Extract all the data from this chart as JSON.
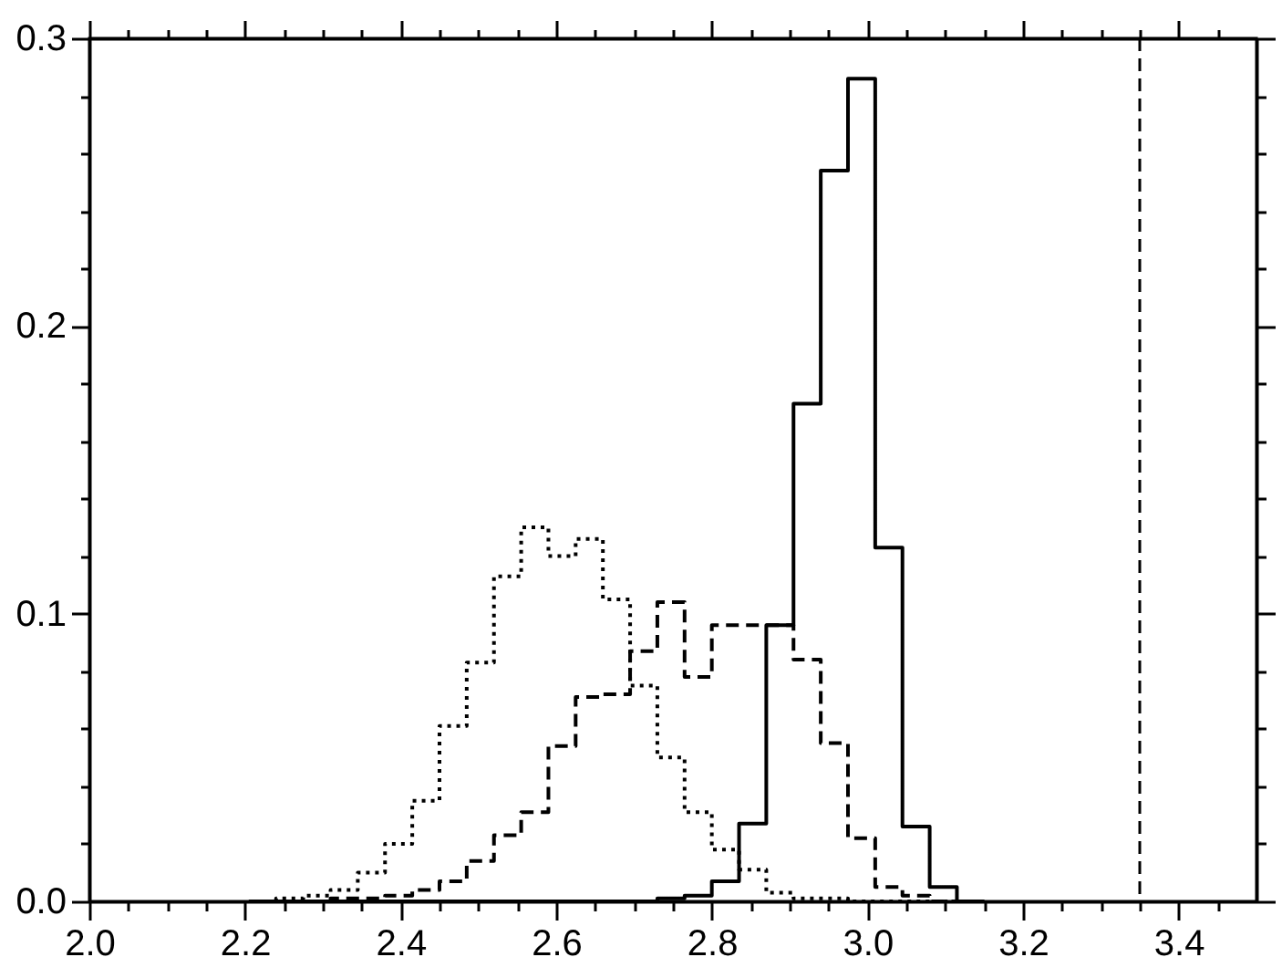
{
  "chart_data": {
    "type": "histogram",
    "bins": [
      2.205,
      2.24,
      2.275,
      2.31,
      2.345,
      2.38,
      2.415,
      2.45,
      2.485,
      2.52,
      2.555,
      2.59,
      2.625,
      2.66,
      2.695,
      2.73,
      2.765,
      2.8,
      2.835,
      2.87,
      2.905,
      2.94,
      2.975,
      3.01,
      3.045,
      3.08,
      3.115,
      3.15
    ],
    "series": [
      {
        "color": "#000000",
        "line_style": "solid",
        "values": [
          0,
          0,
          0,
          0,
          0,
          0,
          0,
          0,
          0,
          0,
          0,
          0,
          0,
          0,
          0,
          0.001,
          0.002,
          0.007,
          0.027,
          0.096,
          0.173,
          0.254,
          0.286,
          0.123,
          0.026,
          0.005,
          0
        ]
      },
      {
        "color": "#000000",
        "line_style": "dashed",
        "values": [
          0,
          0,
          0,
          0.001,
          0.001,
          0.002,
          0.004,
          0.007,
          0.014,
          0.023,
          0.031,
          0.054,
          0.071,
          0.072,
          0.087,
          0.104,
          0.078,
          0.096,
          0.096,
          0.096,
          0.084,
          0.055,
          0.022,
          0.005,
          0.002,
          0,
          0
        ]
      },
      {
        "color": "#000000",
        "line_style": "dotted",
        "values": [
          0,
          0.001,
          0.002,
          0.004,
          0.01,
          0.02,
          0.035,
          0.061,
          0.083,
          0.113,
          0.13,
          0.12,
          0.126,
          0.105,
          0.075,
          0.05,
          0.031,
          0.018,
          0.011,
          0.003,
          0.001,
          0.001,
          0,
          0,
          0,
          0,
          0
        ]
      }
    ],
    "xlim": [
      2.0,
      3.5
    ],
    "ylim": [
      0,
      0.3
    ],
    "xticks": [
      {
        "value": 2.0,
        "label": "2.0"
      },
      {
        "value": 2.05,
        "label": null
      },
      {
        "value": 2.1,
        "label": null
      },
      {
        "value": 2.15,
        "label": null
      },
      {
        "value": 2.2,
        "label": "2.2"
      },
      {
        "value": 2.25,
        "label": null
      },
      {
        "value": 2.3,
        "label": null
      },
      {
        "value": 2.35,
        "label": null
      },
      {
        "value": 2.4,
        "label": "2.4"
      },
      {
        "value": 2.45,
        "label": null
      },
      {
        "value": 2.5,
        "label": null
      },
      {
        "value": 2.55,
        "label": null
      },
      {
        "value": 2.6,
        "label": "2.6"
      },
      {
        "value": 2.65,
        "label": null
      },
      {
        "value": 2.7,
        "label": null
      },
      {
        "value": 2.75,
        "label": null
      },
      {
        "value": 2.8,
        "label": "2.8"
      },
      {
        "value": 2.85,
        "label": null
      },
      {
        "value": 2.9,
        "label": null
      },
      {
        "value": 2.95,
        "label": null
      },
      {
        "value": 3.0,
        "label": "3.0"
      },
      {
        "value": 3.05,
        "label": null
      },
      {
        "value": 3.1,
        "label": null
      },
      {
        "value": 3.15,
        "label": null
      },
      {
        "value": 3.2,
        "label": "3.2"
      },
      {
        "value": 3.25,
        "label": null
      },
      {
        "value": 3.3,
        "label": null
      },
      {
        "value": 3.35,
        "label": null
      },
      {
        "value": 3.4,
        "label": "3.4"
      },
      {
        "value": 3.45,
        "label": null
      }
    ],
    "yticks": [
      {
        "value": 0,
        "label": "0.0"
      },
      {
        "value": 0.02,
        "label": null
      },
      {
        "value": 0.04,
        "label": null
      },
      {
        "value": 0.06,
        "label": null
      },
      {
        "value": 0.08,
        "label": null
      },
      {
        "value": 0.1,
        "label": "0.1"
      },
      {
        "value": 0.12,
        "label": null
      },
      {
        "value": 0.14,
        "label": null
      },
      {
        "value": 0.16,
        "label": null
      },
      {
        "value": 0.18,
        "label": null
      },
      {
        "value": 0.2,
        "label": "0.2"
      },
      {
        "value": 0.22,
        "label": null
      },
      {
        "value": 0.24,
        "label": null
      },
      {
        "value": 0.26,
        "label": null
      },
      {
        "value": 0.28,
        "label": null
      },
      {
        "value": 0.3,
        "label": "0.3"
      }
    ],
    "ref_lines": [
      {
        "axis": "x",
        "value": 3.35,
        "color": "#000000",
        "line_style": "dashed"
      }
    ]
  }
}
